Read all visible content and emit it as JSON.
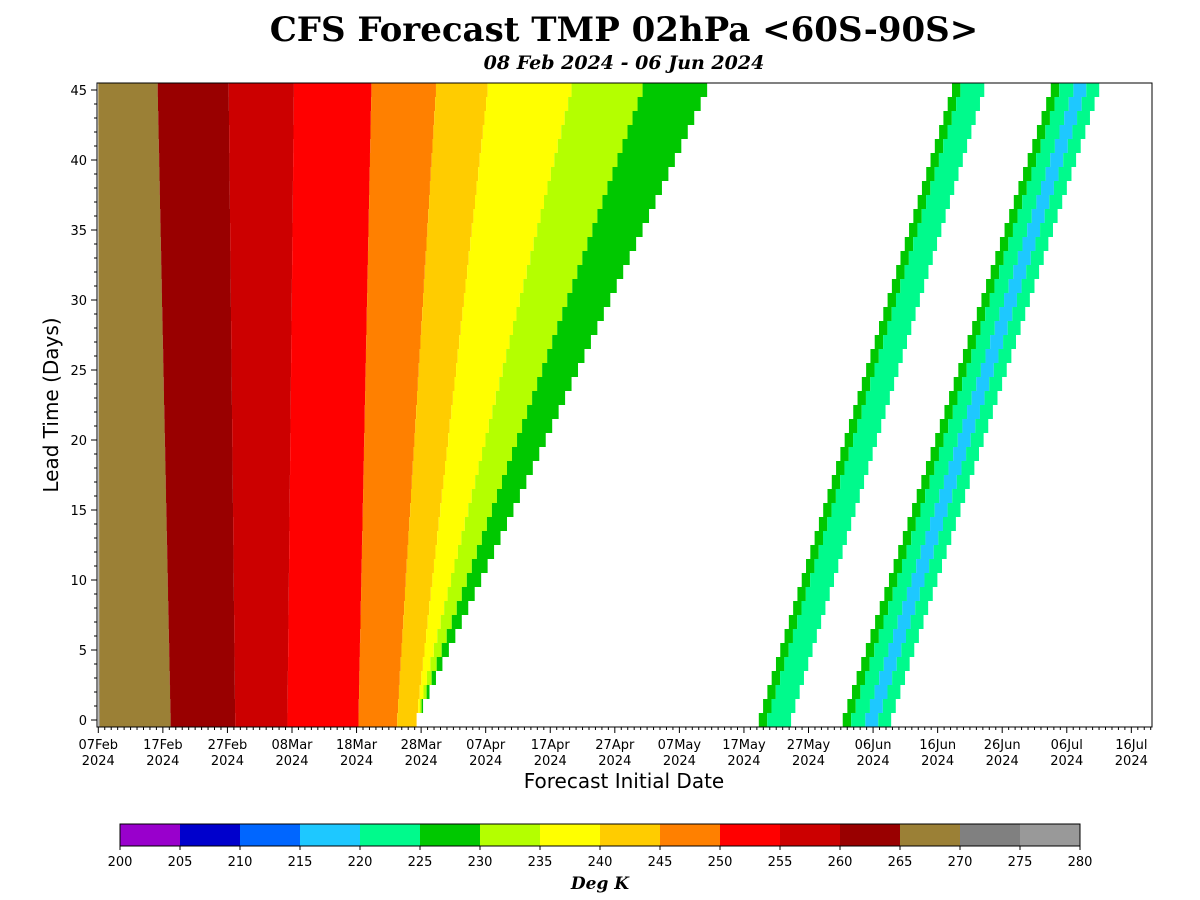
{
  "chart_data": {
    "type": "heatmap",
    "title": "CFS Forecast TMP 02hPa <60S-90S>",
    "subtitle": "08 Feb 2024 - 06 Jun 2024",
    "xlabel": "Forecast Initial Date",
    "ylabel": "Lead Time (Days)",
    "x_range_days": [
      0,
      163
    ],
    "ylim": [
      0,
      45
    ],
    "x_ticks": [
      {
        "day": 0,
        "date": "07Feb",
        "year": "2024"
      },
      {
        "day": 10,
        "date": "17Feb",
        "year": "2024"
      },
      {
        "day": 20,
        "date": "27Feb",
        "year": "2024"
      },
      {
        "day": 30,
        "date": "08Mar",
        "year": "2024"
      },
      {
        "day": 40,
        "date": "18Mar",
        "year": "2024"
      },
      {
        "day": 50,
        "date": "28Mar",
        "year": "2024"
      },
      {
        "day": 60,
        "date": "07Apr",
        "year": "2024"
      },
      {
        "day": 70,
        "date": "17Apr",
        "year": "2024"
      },
      {
        "day": 80,
        "date": "27Apr",
        "year": "2024"
      },
      {
        "day": 90,
        "date": "07May",
        "year": "2024"
      },
      {
        "day": 100,
        "date": "17May",
        "year": "2024"
      },
      {
        "day": 110,
        "date": "27May",
        "year": "2024"
      },
      {
        "day": 120,
        "date": "06Jun",
        "year": "2024"
      },
      {
        "day": 130,
        "date": "16Jun",
        "year": "2024"
      },
      {
        "day": 140,
        "date": "26Jun",
        "year": "2024"
      },
      {
        "day": 150,
        "date": "06Jul",
        "year": "2024"
      },
      {
        "day": 160,
        "date": "16Jul",
        "year": "2024"
      }
    ],
    "y_ticks": [
      0,
      5,
      10,
      15,
      20,
      25,
      30,
      35,
      40,
      45
    ],
    "colorbar": {
      "label": "Deg K",
      "levels": [
        200,
        205,
        210,
        215,
        220,
        225,
        230,
        235,
        240,
        245,
        250,
        255,
        260,
        265,
        270,
        275,
        280
      ],
      "colors": [
        "#9900cc",
        "#0000cc",
        "#0066ff",
        "#1ec8ff",
        "#00fa8c",
        "#00c800",
        "#b4ff00",
        "#ffff00",
        "#ffcc00",
        "#ff8000",
        "#ff0000",
        "#cc0000",
        "#990000",
        "#9b8036",
        "#808080",
        "#999999"
      ]
    },
    "band_boundaries_at_lead0": [
      {
        "between": "275-280 | 265-270",
        "day": 0.2
      },
      {
        "between": "265-270 | 260-265",
        "day": 11.2
      },
      {
        "between": "260-265 | 255-260",
        "day": 21.2
      },
      {
        "between": "255-260 | 250-255",
        "day": 29.3
      },
      {
        "between": "250-255 | 245-250",
        "day": 40.3
      },
      {
        "between": "245-250 | 240-245",
        "day": 46.3
      },
      {
        "between": "240-245 | end of data",
        "day": 49.3
      }
    ],
    "band_boundaries_at_lead45": [
      {
        "between": "265-270 | 260-265",
        "day": 9.2
      },
      {
        "between": "260-265 | 255-260",
        "day": 20.2
      },
      {
        "between": "255-260 | 250-255",
        "day": 30.3
      },
      {
        "between": "250-255 | 245-250",
        "day": 42.3
      },
      {
        "between": "245-250 | 240-245",
        "day": 52.3
      },
      {
        "between": "240-245 | 235-240",
        "day": 60.3
      },
      {
        "between": "235-240 | 230-235",
        "day": 73.3
      },
      {
        "between": "230-235 | 225-230",
        "day": 84.3
      },
      {
        "between": "225-230 | end of data",
        "day": 94.3
      }
    ],
    "diagonal_band_groups": [
      {
        "name": "A",
        "start_day_at_lead0": 102.3,
        "slope_days_per_lead": 1.023,
        "segments": [
          {
            "from": 0,
            "to": 1.3,
            "level": "225-230"
          },
          {
            "from": 1.3,
            "to": 5.0,
            "level": "220-225"
          }
        ]
      },
      {
        "name": "B",
        "start_day_at_lead0": 115.3,
        "slope_days_per_lead": 1.023,
        "segments": [
          {
            "from": 0,
            "to": 1.3,
            "level": "225-230"
          },
          {
            "from": 1.3,
            "to": 3.5,
            "level": "220-225"
          },
          {
            "from": 3.5,
            "to": 5.5,
            "level": "215-220"
          },
          {
            "from": 5.5,
            "to": 7.5,
            "level": "220-225"
          }
        ]
      }
    ]
  }
}
